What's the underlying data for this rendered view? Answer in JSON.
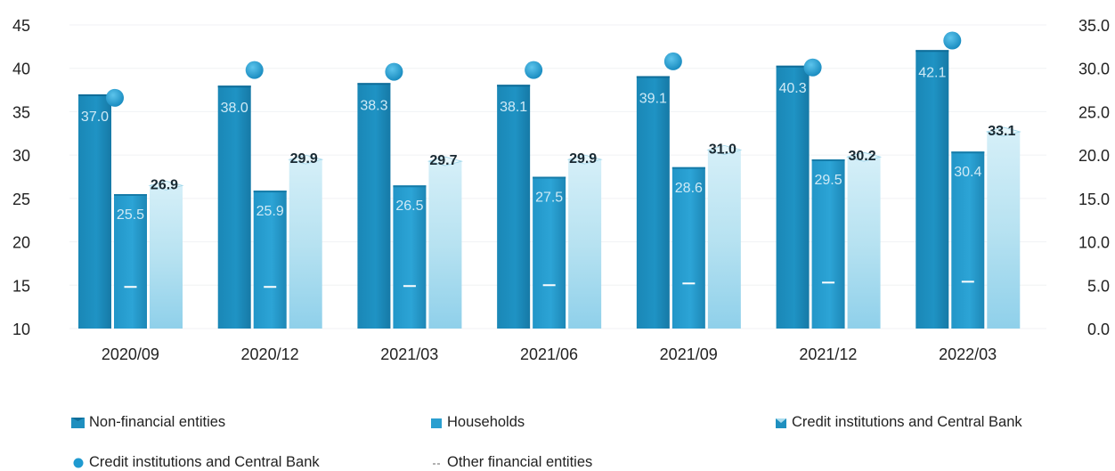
{
  "chart_data": {
    "type": "bar",
    "categories": [
      "2020/09",
      "2020/12",
      "2021/03",
      "2021/06",
      "2021/09",
      "2021/12",
      "2022/03"
    ],
    "y_left": {
      "ticks": [
        "45",
        "40",
        "35",
        "30",
        "25",
        "20",
        "15",
        "10"
      ],
      "min": 10,
      "max": 45
    },
    "y_right": {
      "ticks": [
        "35.0",
        "30.0",
        "25.0",
        "20.0",
        "15.0",
        "10.0",
        "5.0",
        "0.0"
      ],
      "min": 0,
      "max": 35
    },
    "grid": true,
    "legend_position": "bottom",
    "series": [
      {
        "name": "Non-financial entities",
        "axis": "left",
        "kind": "bar",
        "color": "#1e8fbf",
        "values": [
          37.0,
          38.0,
          38.3,
          38.1,
          39.1,
          40.3,
          42.1
        ],
        "labels": [
          "37.0",
          "38.0",
          "38.3",
          "38.1",
          "39.1",
          "40.3",
          "42.1"
        ]
      },
      {
        "name": "Households",
        "axis": "left",
        "kind": "bar",
        "color": "#2a9fd0",
        "values": [
          25.5,
          25.9,
          26.5,
          27.5,
          28.6,
          29.5,
          30.4
        ],
        "labels": [
          "25.5",
          "25.9",
          "26.5",
          "27.5",
          "28.6",
          "29.5",
          "30.4"
        ]
      },
      {
        "name": "Credit institutions and Central Bank",
        "axis": "left",
        "kind": "bar",
        "color": "#a9dcee",
        "values": [
          26.9,
          29.9,
          29.7,
          29.9,
          31.0,
          30.2,
          33.1
        ],
        "labels": [
          "26.9",
          "29.9",
          "29.7",
          "29.9",
          "31.0",
          "30.2",
          "33.1"
        ]
      },
      {
        "name": "Credit institutions and Central Bank",
        "axis": "right",
        "kind": "marker",
        "color": "#1f9ad0",
        "values": [
          26.6,
          29.8,
          29.6,
          29.8,
          30.8,
          30.1,
          33.2
        ]
      },
      {
        "name": "Other financial entities",
        "axis": "right",
        "kind": "dash",
        "color": "#ffffff",
        "values": [
          4.8,
          4.8,
          4.9,
          5.0,
          5.2,
          5.3,
          5.4
        ]
      }
    ]
  }
}
